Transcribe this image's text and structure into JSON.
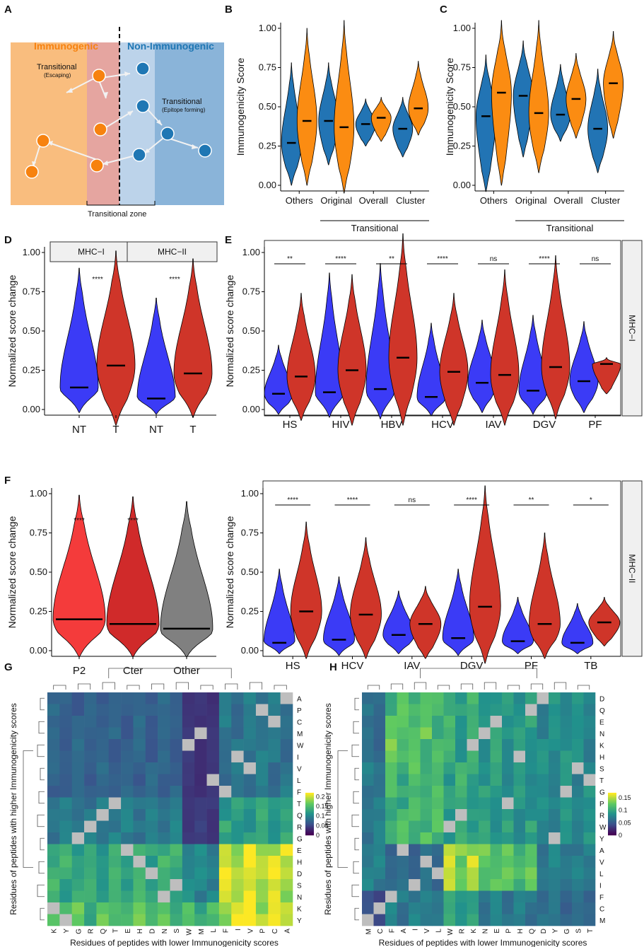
{
  "panel_letters": [
    "A",
    "B",
    "C",
    "D",
    "E",
    "F",
    "G",
    "H"
  ],
  "panel_a": {
    "left_title": "Immunogenic",
    "right_title": "Non-Immunogenic",
    "label_escaping": "Transitional",
    "label_escaping_sub": "(Escaping)",
    "label_epitope": "Transitional",
    "label_epitope_sub": "(Epitope forming)",
    "zone_label": "Transitional zone",
    "colors": {
      "immuno_bg": "#f9bd7e",
      "zone_left": "#e5a5a0",
      "zone_right": "#bcd3ea",
      "nonimmuno_bg": "#8ab4d9",
      "orange": "#f7820f",
      "blue": "#1f77b4",
      "immuno_title": "#f7820f",
      "nonimmuno_title": "#1f77b4"
    }
  },
  "common": {
    "score_ylabel": "Immunogenicity Score",
    "change_ylabel": "Normalized score change",
    "transitional_label": "Transitional",
    "colors": {
      "blue_violin": "#2274b4",
      "orange_violin": "#fb8c12",
      "nt_violin": "#3b3bf6",
      "t_violin": "#cf3529"
    }
  },
  "chart_data": [
    {
      "panel": "B",
      "type": "violin",
      "title": "",
      "ylabel": "Immunogenicity Score",
      "ylim": [
        0,
        1
      ],
      "yticks": [
        "0.00",
        "0.25",
        "0.50",
        "0.75",
        "1.00"
      ],
      "categories": [
        "Others",
        "Original",
        "Overall",
        "Cluster"
      ],
      "bracket_label": "Transitional",
      "series": [
        {
          "name": "Non-immunogenic",
          "color": "#2274b4",
          "medians": [
            0.27,
            0.41,
            0.39,
            0.36
          ],
          "ranges": [
            [
              0.0,
              0.78
            ],
            [
              0.13,
              0.78
            ],
            [
              0.25,
              0.55
            ],
            [
              0.18,
              0.56
            ]
          ]
        },
        {
          "name": "Immunogenic",
          "color": "#fb8c12",
          "medians": [
            0.41,
            0.37,
            0.43,
            0.49
          ],
          "ranges": [
            [
              0.0,
              1.0
            ],
            [
              -0.05,
              1.05
            ],
            [
              0.28,
              0.56
            ],
            [
              0.32,
              0.79
            ]
          ]
        }
      ]
    },
    {
      "panel": "C",
      "type": "violin",
      "title": "",
      "ylabel": "Immunogenicity Score",
      "ylim": [
        0,
        1
      ],
      "yticks": [
        "0.00",
        "0.25",
        "0.50",
        "0.75",
        "1.00"
      ],
      "categories": [
        "Others",
        "Original",
        "Overall",
        "Cluster"
      ],
      "bracket_label": "Transitional",
      "series": [
        {
          "name": "Non-immunogenic",
          "color": "#2274b4",
          "medians": [
            0.44,
            0.57,
            0.45,
            0.36
          ],
          "ranges": [
            [
              -0.04,
              0.83
            ],
            [
              0.18,
              0.92
            ],
            [
              0.28,
              0.77
            ],
            [
              0.08,
              0.74
            ]
          ]
        },
        {
          "name": "Immunogenic",
          "color": "#fb8c12",
          "medians": [
            0.59,
            0.46,
            0.55,
            0.65
          ],
          "ranges": [
            [
              0.0,
              1.05
            ],
            [
              0.08,
              1.05
            ],
            [
              0.3,
              0.84
            ],
            [
              0.3,
              0.98
            ]
          ]
        }
      ]
    },
    {
      "panel": "D",
      "type": "violin",
      "title": "",
      "ylabel": "Normalized score change",
      "ylim": [
        0,
        1
      ],
      "yticks": [
        "0.00",
        "0.25",
        "0.50",
        "0.75",
        "1.00"
      ],
      "facets": [
        {
          "strip": "MHC−I",
          "categories": [
            "NT",
            "T"
          ],
          "medians": [
            0.14,
            0.28
          ],
          "ranges": [
            [
              -0.02,
              0.9
            ],
            [
              -0.1,
              1.01
            ]
          ],
          "colors": [
            "#3b3bf6",
            "#cf3529"
          ],
          "significance": "****"
        },
        {
          "strip": "MHC−II",
          "categories": [
            "NT",
            "T"
          ],
          "medians": [
            0.07,
            0.23
          ],
          "ranges": [
            [
              -0.03,
              0.71
            ],
            [
              -0.05,
              0.96
            ]
          ],
          "colors": [
            "#3b3bf6",
            "#cf3529"
          ],
          "significance": "****"
        }
      ]
    },
    {
      "panel": "E",
      "type": "violin",
      "title": "",
      "ylabel": "Normalized score change",
      "ylim": [
        0,
        1
      ],
      "yticks": [
        "0.00",
        "0.25",
        "0.50",
        "0.75",
        "1.00"
      ],
      "strip": "MHC−I",
      "categories": [
        "HS",
        "HIV",
        "HBV",
        "HCV",
        "IAV",
        "DGV",
        "PF"
      ],
      "significance": [
        "**",
        "****",
        "**",
        "****",
        "ns",
        "****",
        "ns"
      ],
      "series": [
        {
          "name": "NT",
          "color": "#3b3bf6",
          "medians": [
            0.1,
            0.11,
            0.13,
            0.08,
            0.17,
            0.12,
            0.18
          ],
          "ranges": [
            [
              -0.03,
              0.41
            ],
            [
              -0.05,
              0.87
            ],
            [
              -0.06,
              0.93
            ],
            [
              -0.04,
              0.55
            ],
            [
              -0.02,
              0.57
            ],
            [
              -0.03,
              0.6
            ],
            [
              -0.02,
              0.56
            ]
          ]
        },
        {
          "name": "T",
          "color": "#cf3529",
          "medians": [
            0.21,
            0.25,
            0.33,
            0.24,
            0.22,
            0.27,
            0.29
          ],
          "ranges": [
            [
              -0.07,
              0.74
            ],
            [
              -0.1,
              0.86
            ],
            [
              -0.1,
              1.12
            ],
            [
              -0.1,
              0.74
            ],
            [
              -0.1,
              0.89
            ],
            [
              -0.06,
              0.98
            ],
            [
              0.1,
              0.33
            ]
          ]
        }
      ]
    },
    {
      "panel": "F-left",
      "type": "violin",
      "title": "",
      "ylabel": "Normalized score change",
      "ylim": [
        0,
        1
      ],
      "yticks": [
        "0.00",
        "0.25",
        "0.50",
        "0.75",
        "1.00"
      ],
      "categories": [
        "P2",
        "Cter",
        "Other"
      ],
      "colors": [
        "#f43b3b",
        "#d02a2a",
        "#808080"
      ],
      "medians": [
        0.2,
        0.17,
        0.14
      ],
      "ranges": [
        [
          -0.04,
          0.99
        ],
        [
          -0.04,
          0.98
        ],
        [
          -0.04,
          0.95
        ]
      ],
      "significance": [
        "****",
        "****",
        ""
      ]
    },
    {
      "panel": "F-right",
      "type": "violin",
      "title": "",
      "ylabel": "Normalized score change",
      "ylim": [
        0,
        1
      ],
      "yticks": [
        "0.00",
        "0.25",
        "0.50",
        "0.75",
        "1.00"
      ],
      "strip": "MHC−II",
      "categories": [
        "HS",
        "HCV",
        "IAV",
        "DGV",
        "PF",
        "TB"
      ],
      "significance": [
        "****",
        "****",
        "ns",
        "****",
        "**",
        "*"
      ],
      "series": [
        {
          "name": "NT",
          "color": "#3b3bf6",
          "medians": [
            0.05,
            0.07,
            0.1,
            0.08,
            0.06,
            0.05
          ],
          "ranges": [
            [
              -0.02,
              0.52
            ],
            [
              -0.03,
              0.47
            ],
            [
              -0.02,
              0.38
            ],
            [
              -0.03,
              0.52
            ],
            [
              -0.02,
              0.34
            ],
            [
              -0.02,
              0.3
            ]
          ]
        },
        {
          "name": "T",
          "color": "#cf3529",
          "medians": [
            0.25,
            0.23,
            0.17,
            0.28,
            0.17,
            0.18
          ],
          "ranges": [
            [
              -0.05,
              0.82
            ],
            [
              -0.05,
              0.72
            ],
            [
              -0.05,
              0.41
            ],
            [
              -0.08,
              1.05
            ],
            [
              -0.05,
              0.75
            ],
            [
              0.03,
              0.34
            ]
          ]
        }
      ]
    },
    {
      "panel": "G",
      "type": "heatmap",
      "xlabel": "Residues of peptides with lower Immunogenicity scores",
      "ylabel": "Residues of peptides with higher Immunogenicity scores",
      "col_labels": [
        "K",
        "Y",
        "G",
        "R",
        "Q",
        "T",
        "E",
        "H",
        "D",
        "N",
        "S",
        "W",
        "M",
        "L",
        "F",
        "I",
        "V",
        "P",
        "C",
        "A"
      ],
      "row_labels": [
        "A",
        "P",
        "C",
        "M",
        "W",
        "I",
        "V",
        "L",
        "F",
        "T",
        "Q",
        "R",
        "G",
        "E",
        "H",
        "D",
        "S",
        "N",
        "K",
        "Y"
      ],
      "legend_ticks": [
        "0.2",
        "0.15",
        "0.1",
        "0.05",
        "0"
      ],
      "legend_range": [
        0,
        0.22
      ],
      "row_groups": [
        0,
        0,
        0,
        0,
        0,
        0,
        0,
        0,
        0,
        1,
        1,
        1,
        1,
        2,
        2,
        2,
        2,
        2,
        3,
        3
      ],
      "col_groups": [
        0,
        0,
        0,
        0,
        0,
        0,
        0,
        0,
        0,
        0,
        0,
        1,
        1,
        1,
        2,
        2,
        2,
        2,
        2,
        2
      ],
      "group_matrix": [
        [
          0.07,
          0.035,
          0.085
        ],
        [
          0.09,
          0.04,
          0.12
        ],
        [
          0.13,
          0.1,
          0.2
        ],
        [
          0.15,
          0.14,
          0.21
        ]
      ],
      "diagonal_gray": [
        [
          0,
          19
        ],
        [
          1,
          17
        ],
        [
          2,
          18
        ],
        [
          3,
          12
        ],
        [
          4,
          11
        ],
        [
          5,
          15
        ],
        [
          6,
          16
        ],
        [
          7,
          13
        ],
        [
          8,
          14
        ],
        [
          9,
          5
        ],
        [
          10,
          4
        ],
        [
          11,
          3
        ],
        [
          12,
          2
        ],
        [
          13,
          6
        ],
        [
          14,
          7
        ],
        [
          15,
          8
        ],
        [
          16,
          10
        ],
        [
          17,
          9
        ],
        [
          18,
          0
        ],
        [
          19,
          1
        ]
      ]
    },
    {
      "panel": "H",
      "type": "heatmap",
      "xlabel": "Residues of peptides with lower Immunogenicity scores",
      "ylabel": "Residues of peptides with higher Immunogenicity scores",
      "col_labels": [
        "M",
        "C",
        "F",
        "A",
        "I",
        "V",
        "L",
        "W",
        "R",
        "K",
        "N",
        "E",
        "P",
        "H",
        "Q",
        "D",
        "Y",
        "G",
        "S",
        "T"
      ],
      "row_labels": [
        "D",
        "Q",
        "E",
        "N",
        "K",
        "H",
        "S",
        "T",
        "G",
        "P",
        "R",
        "W",
        "Y",
        "A",
        "V",
        "L",
        "I",
        "F",
        "C",
        "M"
      ],
      "legend_ticks": [
        "0.15",
        "0.1",
        "0.05",
        "0"
      ],
      "legend_range": [
        0,
        0.17
      ],
      "row_groups": [
        0,
        0,
        0,
        0,
        0,
        0,
        1,
        1,
        1,
        1,
        1,
        1,
        1,
        2,
        2,
        2,
        2,
        3,
        3,
        3
      ],
      "col_groups": [
        0,
        0,
        1,
        1,
        1,
        1,
        1,
        2,
        2,
        2,
        3,
        3,
        3,
        3,
        3,
        4,
        4,
        4,
        4,
        4
      ],
      "group_matrix": [
        [
          0.06,
          0.12,
          0.1,
          0.09,
          0.08
        ],
        [
          0.07,
          0.11,
          0.1,
          0.09,
          0.08
        ],
        [
          0.07,
          0.06,
          0.14,
          0.12,
          0.07
        ],
        [
          0.04,
          0.07,
          0.09,
          0.07,
          0.06
        ]
      ],
      "diagonal_gray": [
        [
          0,
          15
        ],
        [
          1,
          14
        ],
        [
          2,
          11
        ],
        [
          3,
          10
        ],
        [
          4,
          9
        ],
        [
          5,
          13
        ],
        [
          6,
          18
        ],
        [
          7,
          19
        ],
        [
          8,
          17
        ],
        [
          9,
          12
        ],
        [
          10,
          8
        ],
        [
          11,
          7
        ],
        [
          12,
          16
        ],
        [
          13,
          3
        ],
        [
          14,
          5
        ],
        [
          15,
          6
        ],
        [
          16,
          4
        ],
        [
          17,
          2
        ],
        [
          18,
          1
        ],
        [
          19,
          0
        ]
      ]
    }
  ]
}
